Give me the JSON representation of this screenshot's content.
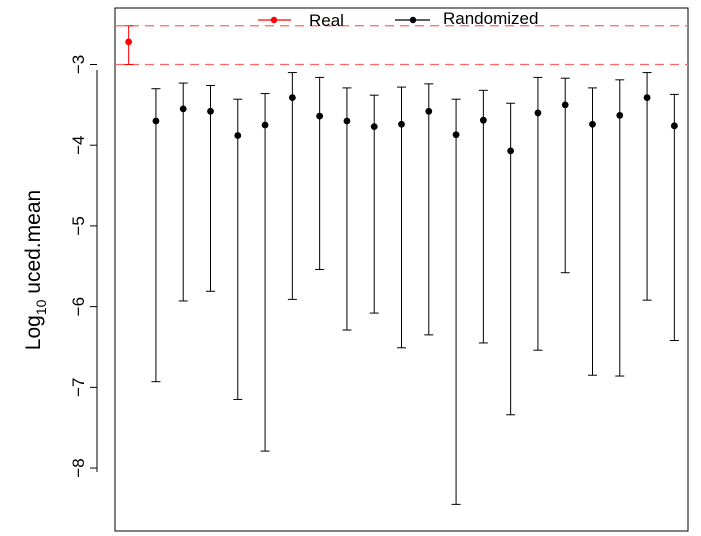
{
  "chart_data": {
    "type": "scatter",
    "title": "",
    "xlabel": "",
    "ylabel": {
      "base": "Log",
      "subscript": "10",
      "rest": " uced.mean"
    },
    "ylim": [
      -8.78,
      -2.3
    ],
    "xlim": [
      0.5,
      21.5
    ],
    "yticks": [
      -8,
      -7,
      -6,
      -5,
      -4,
      -3
    ],
    "ytick_labels": [
      "−8",
      "−7",
      "−6",
      "−5",
      "−4",
      "−3"
    ],
    "grid": false,
    "legend": {
      "placement": "top-center",
      "entries": [
        {
          "label": "Real",
          "color": "#ff0000"
        },
        {
          "label": "Randomized",
          "color": "#000000"
        }
      ]
    },
    "reference_lines": {
      "color": "#ff6666",
      "style": "dashed",
      "y_values": [
        -2.52,
        -3.0
      ]
    },
    "series": [
      {
        "name": "Real",
        "color": "#ff0000",
        "points": [
          {
            "x": 1,
            "y": -2.72,
            "low": -3.0,
            "high": -2.52
          }
        ]
      },
      {
        "name": "Randomized",
        "color": "#000000",
        "points": [
          {
            "x": 2,
            "y": -3.7,
            "low": -6.93,
            "high": -3.3
          },
          {
            "x": 3,
            "y": -3.55,
            "low": -5.93,
            "high": -3.23
          },
          {
            "x": 4,
            "y": -3.58,
            "low": -5.81,
            "high": -3.26
          },
          {
            "x": 5,
            "y": -3.88,
            "low": -7.15,
            "high": -3.43
          },
          {
            "x": 6,
            "y": -3.75,
            "low": -7.79,
            "high": -3.36
          },
          {
            "x": 7,
            "y": -3.41,
            "low": -5.91,
            "high": -3.1
          },
          {
            "x": 8,
            "y": -3.64,
            "low": -5.54,
            "high": -3.16
          },
          {
            "x": 9,
            "y": -3.7,
            "low": -6.29,
            "high": -3.29
          },
          {
            "x": 10,
            "y": -3.77,
            "low": -6.08,
            "high": -3.38
          },
          {
            "x": 11,
            "y": -3.74,
            "low": -6.51,
            "high": -3.28
          },
          {
            "x": 12,
            "y": -3.58,
            "low": -6.35,
            "high": -3.24
          },
          {
            "x": 13,
            "y": -3.87,
            "low": -8.45,
            "high": -3.43
          },
          {
            "x": 14,
            "y": -3.69,
            "low": -6.45,
            "high": -3.32
          },
          {
            "x": 15,
            "y": -4.07,
            "low": -7.34,
            "high": -3.48
          },
          {
            "x": 16,
            "y": -3.6,
            "low": -6.54,
            "high": -3.16
          },
          {
            "x": 17,
            "y": -3.5,
            "low": -5.58,
            "high": -3.17
          },
          {
            "x": 18,
            "y": -3.74,
            "low": -6.85,
            "high": -3.29
          },
          {
            "x": 19,
            "y": -3.63,
            "low": -6.86,
            "high": -3.19
          },
          {
            "x": 20,
            "y": -3.41,
            "low": -5.92,
            "high": -3.1
          },
          {
            "x": 21,
            "y": -3.76,
            "low": -6.42,
            "high": -3.37
          }
        ]
      }
    ]
  }
}
